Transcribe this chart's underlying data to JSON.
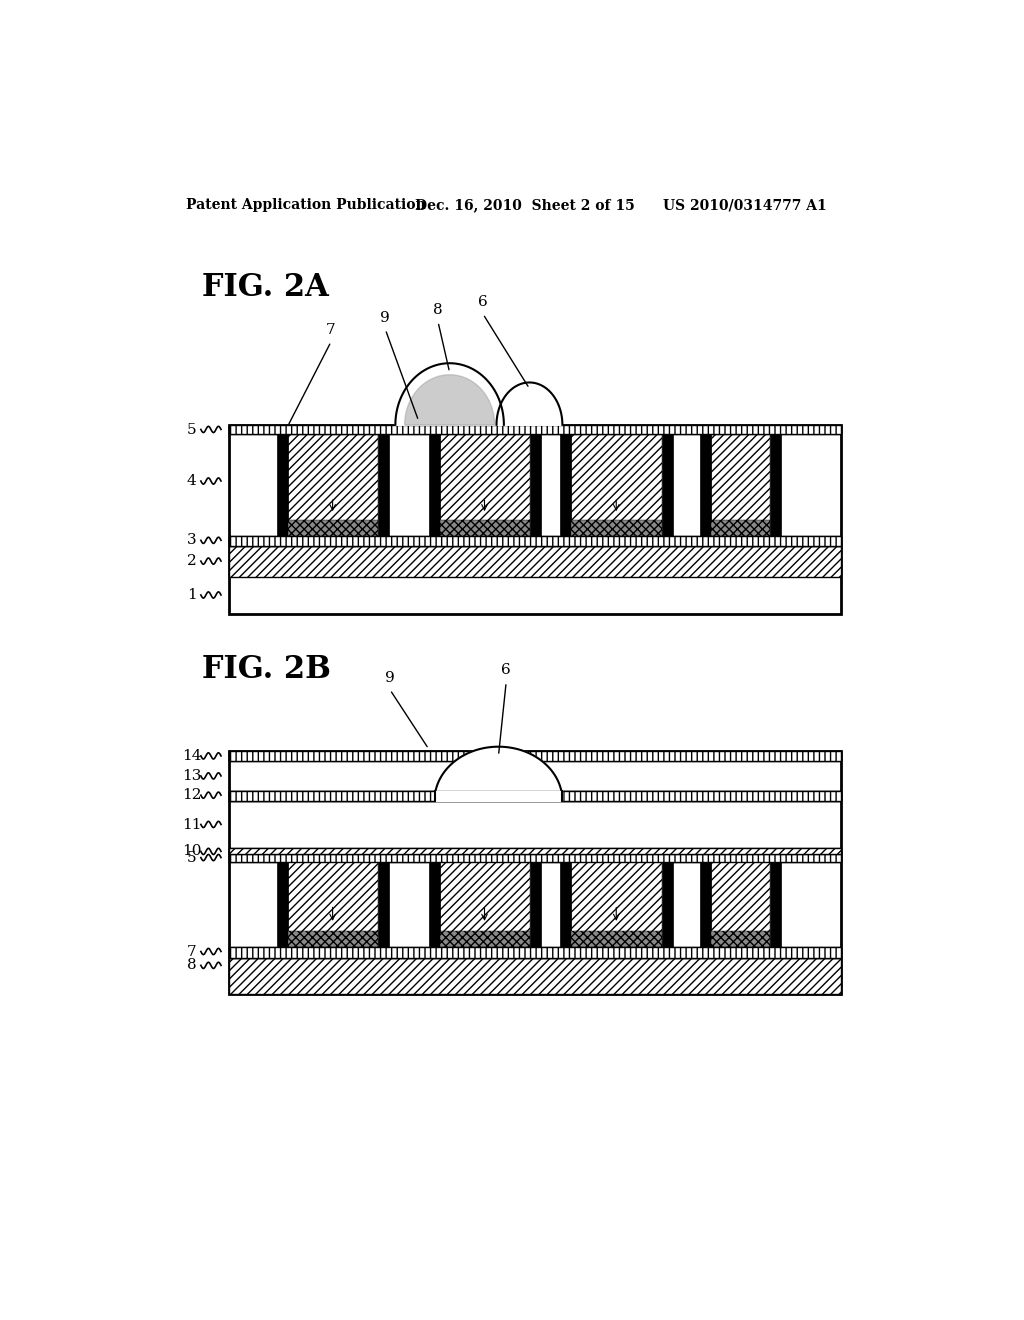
{
  "bg_color": "#ffffff",
  "header_text": "Patent Application Publication",
  "header_date": "Dec. 16, 2010  Sheet 2 of 15",
  "header_patent": "US 2010/0314777 A1",
  "fig2a_label": "FIG. 2A",
  "fig2b_label": "FIG. 2B"
}
